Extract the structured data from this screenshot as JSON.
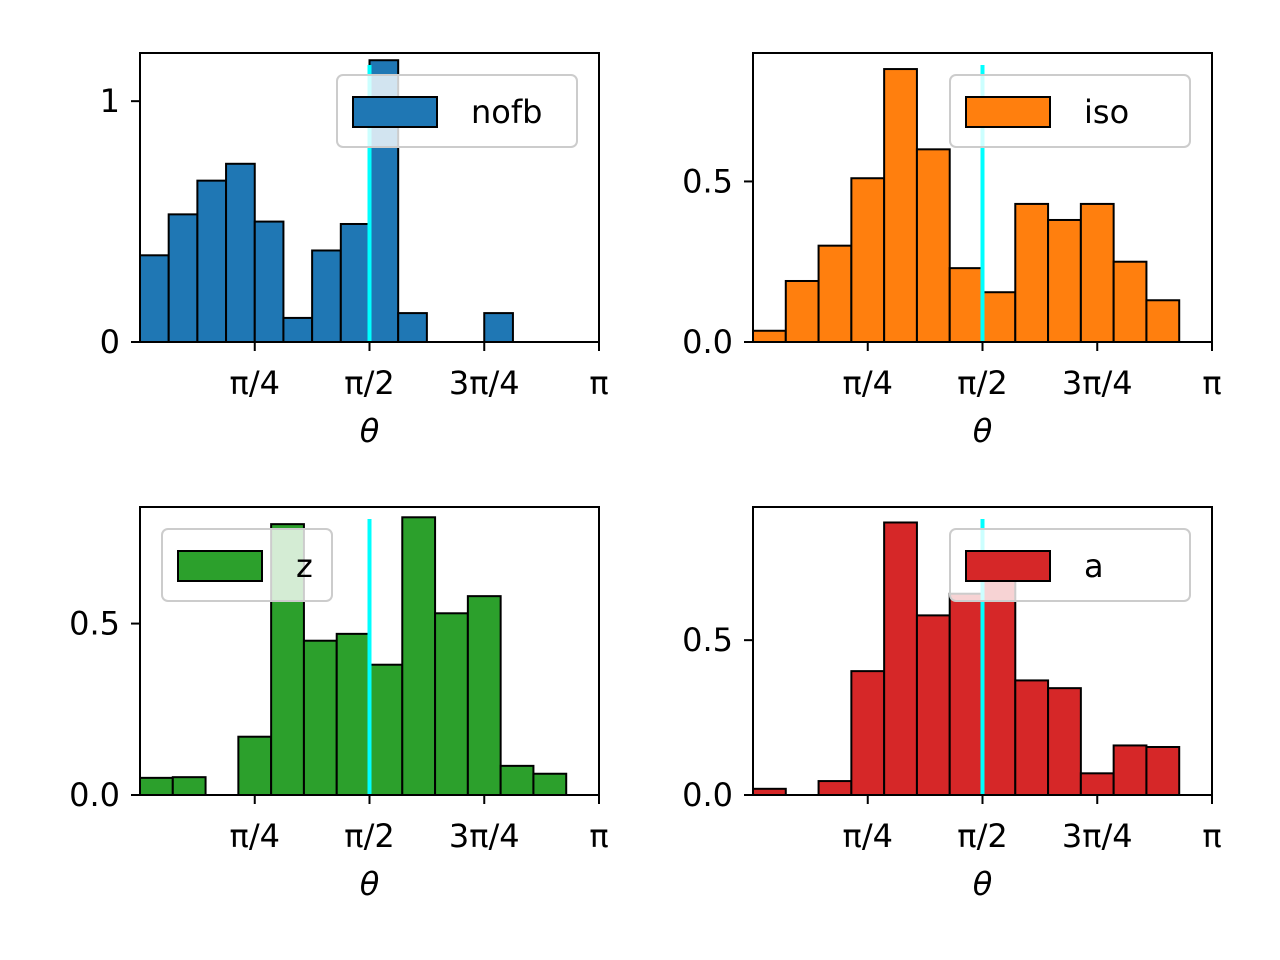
{
  "chart_data": [
    {
      "type": "bar",
      "name": "nofb",
      "legend_label": "nofb",
      "legend_position": "top-right",
      "color": "#1f77b4",
      "xlabel": "θ",
      "xlim": [
        0,
        3.14159
      ],
      "ylim": [
        0,
        1.2
      ],
      "xticks": [
        {
          "value": 0.7854,
          "label": "π/4"
        },
        {
          "value": 1.5708,
          "label": "π/2"
        },
        {
          "value": 2.3562,
          "label": "3π/4"
        },
        {
          "value": 3.14159,
          "label": "π"
        }
      ],
      "yticks": [
        {
          "value": 0,
          "label": "0"
        },
        {
          "value": 1,
          "label": "1"
        }
      ],
      "bins": [
        {
          "x0": 0.0,
          "x1": 0.1963,
          "value": 0.36
        },
        {
          "x0": 0.1963,
          "x1": 0.3927,
          "value": 0.53
        },
        {
          "x0": 0.3927,
          "x1": 0.589,
          "value": 0.67
        },
        {
          "x0": 0.589,
          "x1": 0.7854,
          "value": 0.74
        },
        {
          "x0": 0.7854,
          "x1": 0.9817,
          "value": 0.5
        },
        {
          "x0": 0.9817,
          "x1": 1.1781,
          "value": 0.1
        },
        {
          "x0": 1.1781,
          "x1": 1.3744,
          "value": 0.38
        },
        {
          "x0": 1.3744,
          "x1": 1.5708,
          "value": 0.49
        },
        {
          "x0": 1.5708,
          "x1": 1.7671,
          "value": 1.17
        },
        {
          "x0": 1.7671,
          "x1": 1.9635,
          "value": 0.12
        },
        {
          "x0": 2.3562,
          "x1": 2.5525,
          "value": 0.12
        }
      ],
      "vline": 1.5708
    },
    {
      "type": "bar",
      "name": "iso",
      "legend_label": "iso",
      "legend_position": "top-right",
      "color": "#ff7f0e",
      "xlabel": "θ",
      "xlim": [
        0,
        3.14159
      ],
      "ylim": [
        0,
        0.9
      ],
      "xticks": [
        {
          "value": 0.7854,
          "label": "π/4"
        },
        {
          "value": 1.5708,
          "label": "π/2"
        },
        {
          "value": 2.3562,
          "label": "3π/4"
        },
        {
          "value": 3.14159,
          "label": "π"
        }
      ],
      "yticks": [
        {
          "value": 0,
          "label": "0.0"
        },
        {
          "value": 0.5,
          "label": "0.5"
        }
      ],
      "bins": [
        {
          "x0": 0.0,
          "x1": 0.2244,
          "value": 0.035
        },
        {
          "x0": 0.2244,
          "x1": 0.4488,
          "value": 0.19
        },
        {
          "x0": 0.4488,
          "x1": 0.6732,
          "value": 0.3
        },
        {
          "x0": 0.6732,
          "x1": 0.8976,
          "value": 0.51
        },
        {
          "x0": 0.8976,
          "x1": 1.122,
          "value": 0.85
        },
        {
          "x0": 1.122,
          "x1": 1.3464,
          "value": 0.6
        },
        {
          "x0": 1.3464,
          "x1": 1.5708,
          "value": 0.23
        },
        {
          "x0": 1.5708,
          "x1": 1.7952,
          "value": 0.155
        },
        {
          "x0": 1.7952,
          "x1": 2.0196,
          "value": 0.43
        },
        {
          "x0": 2.0196,
          "x1": 2.244,
          "value": 0.38
        },
        {
          "x0": 2.244,
          "x1": 2.4684,
          "value": 0.43
        },
        {
          "x0": 2.4684,
          "x1": 2.6928,
          "value": 0.25
        },
        {
          "x0": 2.6928,
          "x1": 2.9172,
          "value": 0.13
        }
      ],
      "vline": 1.5708
    },
    {
      "type": "bar",
      "name": "z",
      "legend_label": "z",
      "legend_position": "top-left",
      "color": "#2ca02c",
      "xlabel": "θ",
      "xlim": [
        0,
        3.14159
      ],
      "ylim": [
        0,
        0.84
      ],
      "xticks": [
        {
          "value": 0.7854,
          "label": "π/4"
        },
        {
          "value": 1.5708,
          "label": "π/2"
        },
        {
          "value": 2.3562,
          "label": "3π/4"
        },
        {
          "value": 3.14159,
          "label": "π"
        }
      ],
      "yticks": [
        {
          "value": 0,
          "label": "0.0"
        },
        {
          "value": 0.5,
          "label": "0.5"
        }
      ],
      "bins": [
        {
          "x0": 0.0,
          "x1": 0.2244,
          "value": 0.05
        },
        {
          "x0": 0.2244,
          "x1": 0.4488,
          "value": 0.052
        },
        {
          "x0": 0.6732,
          "x1": 0.8976,
          "value": 0.17
        },
        {
          "x0": 0.8976,
          "x1": 1.122,
          "value": 0.79
        },
        {
          "x0": 1.122,
          "x1": 1.3464,
          "value": 0.45
        },
        {
          "x0": 1.3464,
          "x1": 1.5708,
          "value": 0.47
        },
        {
          "x0": 1.5708,
          "x1": 1.7952,
          "value": 0.38
        },
        {
          "x0": 1.7952,
          "x1": 2.0196,
          "value": 0.81
        },
        {
          "x0": 2.0196,
          "x1": 2.244,
          "value": 0.53
        },
        {
          "x0": 2.244,
          "x1": 2.4684,
          "value": 0.58
        },
        {
          "x0": 2.4684,
          "x1": 2.6928,
          "value": 0.085
        },
        {
          "x0": 2.6928,
          "x1": 2.9172,
          "value": 0.062
        }
      ],
      "vline": 1.5708
    },
    {
      "type": "bar",
      "name": "a",
      "legend_label": "a",
      "legend_position": "top-right",
      "color": "#d62728",
      "xlabel": "θ",
      "xlim": [
        0,
        3.14159
      ],
      "ylim": [
        0,
        0.93
      ],
      "xticks": [
        {
          "value": 0.7854,
          "label": "π/4"
        },
        {
          "value": 1.5708,
          "label": "π/2"
        },
        {
          "value": 2.3562,
          "label": "3π/4"
        },
        {
          "value": 3.14159,
          "label": "π"
        }
      ],
      "yticks": [
        {
          "value": 0,
          "label": "0.0"
        },
        {
          "value": 0.5,
          "label": "0.5"
        }
      ],
      "bins": [
        {
          "x0": 0.0,
          "x1": 0.2244,
          "value": 0.02
        },
        {
          "x0": 0.4488,
          "x1": 0.6732,
          "value": 0.045
        },
        {
          "x0": 0.6732,
          "x1": 0.8976,
          "value": 0.4
        },
        {
          "x0": 0.8976,
          "x1": 1.122,
          "value": 0.88
        },
        {
          "x0": 1.122,
          "x1": 1.3464,
          "value": 0.58
        },
        {
          "x0": 1.3464,
          "x1": 1.5708,
          "value": 0.65
        },
        {
          "x0": 1.5708,
          "x1": 1.7952,
          "value": 0.72
        },
        {
          "x0": 1.7952,
          "x1": 2.0196,
          "value": 0.37
        },
        {
          "x0": 2.0196,
          "x1": 2.244,
          "value": 0.345
        },
        {
          "x0": 2.244,
          "x1": 2.4684,
          "value": 0.07
        },
        {
          "x0": 2.4684,
          "x1": 2.6928,
          "value": 0.16
        },
        {
          "x0": 2.6928,
          "x1": 2.9172,
          "value": 0.155
        }
      ],
      "vline": 1.5708
    }
  ],
  "vline_color": "#00ffff"
}
